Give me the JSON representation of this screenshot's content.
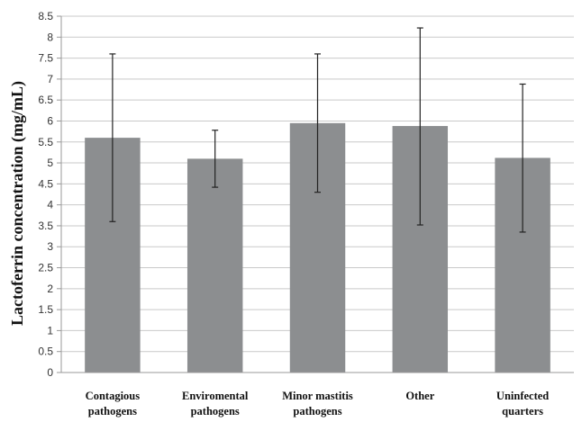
{
  "chart_data": {
    "type": "bar",
    "title": "",
    "xlabel": "",
    "ylabel": "Lactoferrin concentration (mg/mL)",
    "ylim": [
      0,
      8.5
    ],
    "ytick_step": 0.5,
    "ytick_labels": [
      "0",
      "0.5",
      "1",
      "1.5",
      "2",
      "2.5",
      "3",
      "3.5",
      "4",
      "4.5",
      "5",
      "5.5",
      "6",
      "6.5",
      "7",
      "7.5",
      "8",
      "8.5"
    ],
    "grid": true,
    "legend": "none",
    "categories": [
      [
        "Contagious",
        "pathogens"
      ],
      [
        "Enviromental",
        "pathogens"
      ],
      [
        "Minor mastitis",
        "pathogens"
      ],
      [
        "Other"
      ],
      [
        "Uninfected",
        "quarters"
      ]
    ],
    "values": [
      5.6,
      5.1,
      5.95,
      5.88,
      5.12
    ],
    "error_low": [
      3.6,
      4.42,
      4.3,
      3.52,
      3.35
    ],
    "error_high": [
      7.6,
      5.78,
      7.6,
      8.22,
      6.88
    ],
    "bar_color": "#8c8e90",
    "grid_color": "#c9c9c9",
    "axis_color": "#9a9a9a",
    "error_color": "#222222"
  }
}
